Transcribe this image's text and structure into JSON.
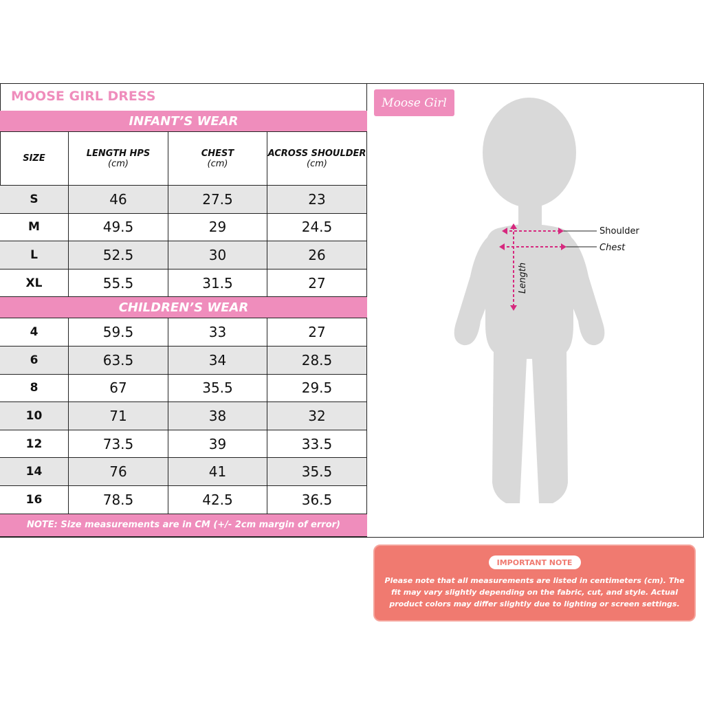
{
  "header": {
    "title": "MOOSE GIRL DRESS"
  },
  "columns": [
    [
      "SIZE"
    ],
    [
      "LENGTH HPS",
      "(cm)"
    ],
    [
      "CHEST",
      "(cm)"
    ],
    [
      "ACROSS SHOULDER",
      "(cm)"
    ]
  ],
  "sections": [
    {
      "title": "INFANT’S WEAR",
      "rows": [
        [
          "S",
          46,
          27.5,
          23
        ],
        [
          "M",
          49.5,
          29,
          24.5
        ],
        [
          "L",
          52.5,
          30,
          26
        ],
        [
          "XL",
          55.5,
          31.5,
          27
        ]
      ]
    },
    {
      "title": "CHILDREN’S WEAR",
      "rows": [
        [
          "4",
          59.5,
          33,
          27
        ],
        [
          "6",
          63.5,
          34,
          28.5
        ],
        [
          "8",
          67,
          35.5,
          29.5
        ],
        [
          "10",
          71,
          38,
          32
        ],
        [
          "12",
          73.5,
          39,
          33.5
        ],
        [
          "14",
          76,
          41,
          35.5
        ],
        [
          "16",
          78.5,
          42.5,
          36.5
        ]
      ]
    }
  ],
  "footnote": "NOTE: Size measurements are in CM (+/- 2cm margin of error)",
  "logo": "Moose Girl",
  "diagram": {
    "shoulder": "Shoulder",
    "chest": "Chest",
    "length": "Length"
  },
  "important_note": {
    "title": "IMPORTANT NOTE",
    "body": "Please note that all measurements are listed in centimeters (cm). The fit may vary slightly depending on the fabric, cut, and style. Actual product colors may differ slightly due to lighting or screen settings."
  }
}
